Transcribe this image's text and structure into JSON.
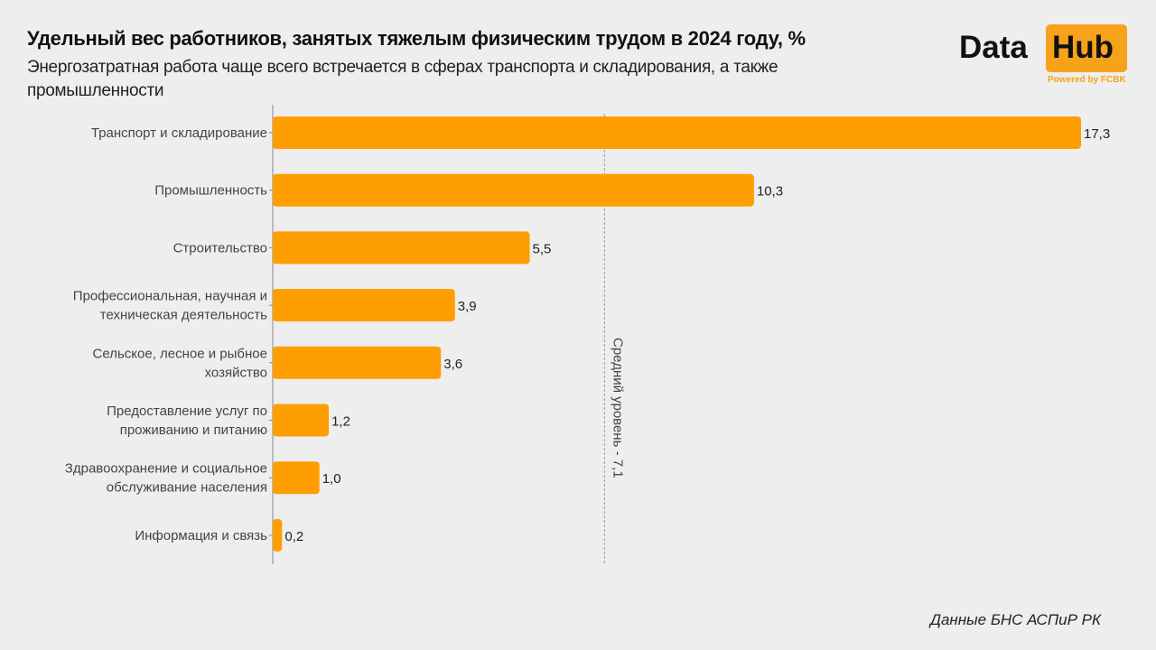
{
  "header": {
    "title": "Удельный вес работников, занятых тяжелым физическим трудом в 2024 году, %",
    "subtitle": "Энергозатратная работа чаще всего встречается в сферах транспорта и складирования, а также промышленности"
  },
  "logo": {
    "word1": "Data",
    "word2": "Hub",
    "powered": "Powered by FCBK",
    "accent": "#f7a21b"
  },
  "source": "Данные БНС АСПиР РК",
  "chart_data": {
    "type": "bar",
    "orientation": "horizontal",
    "title": "Удельный вес работников, занятых тяжелым физическим трудом в 2024 году, %",
    "xlabel": "",
    "ylabel": "",
    "xlim": [
      0,
      17.3
    ],
    "grid": false,
    "bar_color": "#ff9e00",
    "categories": [
      [
        "Транспорт и складирование"
      ],
      [
        "Промышленность"
      ],
      [
        "Строительство"
      ],
      [
        "Профессиональная, научная и",
        "техническая деятельность"
      ],
      [
        "Сельское, лесное и рыбное",
        "хозяйство"
      ],
      [
        "Предоставление услуг по",
        "проживанию и питанию"
      ],
      [
        "Здравоохранение и социальное",
        "обслуживание населения"
      ],
      [
        "Информация и связь"
      ]
    ],
    "values": [
      17.3,
      10.3,
      5.5,
      3.9,
      3.6,
      1.2,
      1.0,
      0.2
    ],
    "value_labels": [
      "17,3",
      "10,3",
      "5,5",
      "3,9",
      "3,6",
      "1,2",
      "1,0",
      "0,2"
    ],
    "reference_line": {
      "value": 7.1,
      "label": "Средний уровень - 7,1"
    }
  }
}
